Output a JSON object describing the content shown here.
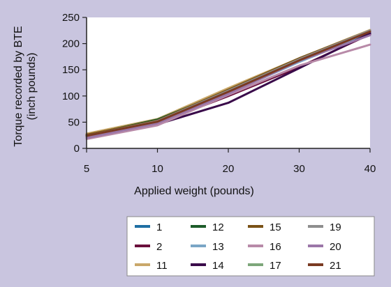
{
  "chart_data": {
    "type": "line",
    "xlabel": "Applied weight (pounds)",
    "ylabel_lines": [
      "Torque recorded by BTE",
      "(inch pounds)"
    ],
    "x": [
      5,
      10,
      20,
      30,
      40
    ],
    "x_ticks": [
      "5",
      "10",
      "20",
      "30",
      "40"
    ],
    "y_ticks": [
      "0",
      "50",
      "100",
      "150",
      "200",
      "250"
    ],
    "ylim": [
      0,
      250
    ],
    "grid": false,
    "legend_placement": "bottom",
    "series": [
      {
        "name": "1",
        "color": "#1f6fa3",
        "points": [
          [
            30,
            165
          ],
          [
            40,
            220
          ]
        ]
      },
      {
        "name": "2",
        "color": "#6b0f3c",
        "points": [
          [
            5,
            22
          ],
          [
            10,
            48
          ],
          [
            20,
            100
          ],
          [
            30,
            155
          ],
          [
            40,
            218
          ]
        ]
      },
      {
        "name": "11",
        "color": "#c9a86a",
        "points": [
          [
            5,
            28
          ],
          [
            10,
            56
          ],
          [
            20,
            115
          ],
          [
            30,
            172
          ],
          [
            40,
            226
          ]
        ]
      },
      {
        "name": "12",
        "color": "#1d5c2a",
        "points": [
          [
            5,
            25
          ],
          [
            10,
            55
          ],
          [
            20,
            110
          ],
          [
            30,
            170
          ],
          [
            40,
            224
          ]
        ]
      },
      {
        "name": "13",
        "color": "#7aa6c6",
        "points": [
          [
            5,
            20
          ],
          [
            10,
            50
          ],
          [
            20,
            105
          ],
          [
            30,
            165
          ],
          [
            40,
            222
          ]
        ]
      },
      {
        "name": "14",
        "color": "#3a0b4a",
        "points": [
          [
            5,
            22
          ],
          [
            10,
            46
          ],
          [
            20,
            87
          ],
          [
            30,
            153
          ],
          [
            40,
            220
          ]
        ]
      },
      {
        "name": "15",
        "color": "#7a5216",
        "points": [
          [
            5,
            26
          ],
          [
            10,
            53
          ],
          [
            20,
            112
          ],
          [
            30,
            172
          ],
          [
            40,
            225
          ]
        ]
      },
      {
        "name": "16",
        "color": "#b88aa8",
        "points": [
          [
            5,
            18
          ],
          [
            10,
            44
          ],
          [
            20,
            102
          ],
          [
            30,
            158
          ],
          [
            40,
            198
          ]
        ]
      },
      {
        "name": "17",
        "color": "#7da77a",
        "points": [
          [
            5,
            22
          ],
          [
            10,
            52
          ],
          [
            20,
            110
          ],
          [
            30,
            170
          ],
          [
            40,
            224
          ]
        ]
      },
      {
        "name": "19",
        "color": "#8e8e8e",
        "points": [
          [
            5,
            24
          ],
          [
            10,
            52
          ],
          [
            20,
            110
          ],
          [
            30,
            170
          ],
          [
            40,
            225
          ]
        ]
      },
      {
        "name": "20",
        "color": "#9b76a8",
        "points": [
          [
            5,
            20
          ],
          [
            10,
            48
          ],
          [
            20,
            104
          ],
          [
            30,
            167
          ],
          [
            40,
            216
          ]
        ]
      },
      {
        "name": "21",
        "color": "#7a3a22",
        "points": [
          [
            5,
            24
          ],
          [
            10,
            51
          ],
          [
            20,
            108
          ],
          [
            30,
            168
          ],
          [
            40,
            223
          ]
        ]
      }
    ],
    "legend_order": [
      "1",
      "12",
      "15",
      "19",
      "2",
      "13",
      "16",
      "20",
      "11",
      "14",
      "17",
      "21"
    ]
  },
  "colors": {
    "page_background": "#c9c5df",
    "plot_background": "#ffffff",
    "legend_background": "#ffffff"
  }
}
